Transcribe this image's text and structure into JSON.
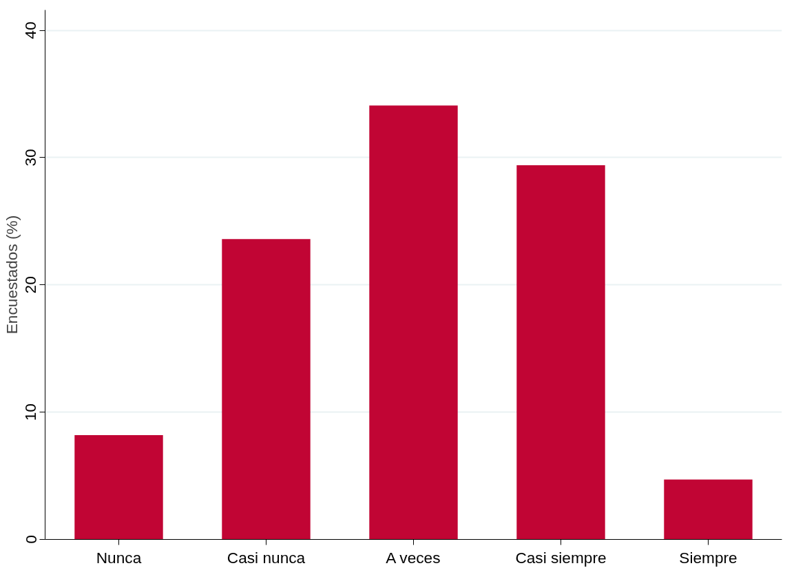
{
  "chart_data": {
    "type": "bar",
    "ylabel": "Encuestados (%)",
    "categories": [
      "Nunca",
      "Casi nunca",
      "A veces",
      "Casi siempre",
      "Siempre"
    ],
    "values": [
      8.2,
      23.6,
      34.1,
      29.4,
      4.7
    ],
    "color": "#c10534",
    "ylim": [
      0,
      41.6
    ],
    "yticks": [
      0,
      10,
      20,
      30,
      40
    ],
    "grid": "y"
  }
}
